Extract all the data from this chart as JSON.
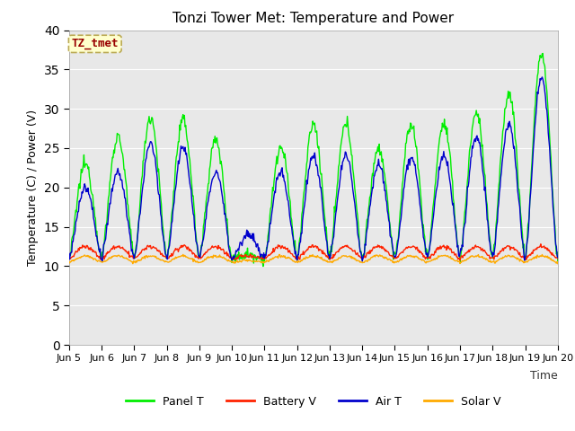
{
  "title": "Tonzi Tower Met: Temperature and Power",
  "xlabel": "Time",
  "ylabel": "Temperature (C) / Power (V)",
  "watermark": "TZ_tmet",
  "ylim": [
    0,
    40
  ],
  "yticks": [
    0,
    5,
    10,
    15,
    20,
    25,
    30,
    35,
    40
  ],
  "xtick_labels": [
    "Jun 5",
    "Jun 6",
    "Jun 7",
    "Jun 8",
    "Jun 9",
    "Jun 10",
    "Jun 11",
    "Jun 12",
    "Jun 13",
    "Jun 14",
    "Jun 15",
    "Jun 16",
    "Jun 17",
    "Jun 18",
    "Jun 19",
    "Jun 20"
  ],
  "colors": {
    "panel_t": "#00EE00",
    "battery_v": "#FF2200",
    "air_t": "#0000CC",
    "solar_v": "#FFAA00"
  },
  "legend": [
    "Panel T",
    "Battery V",
    "Air T",
    "Solar V"
  ],
  "bg_color": "#E8E8E8",
  "grid_color": "#FFFFFF",
  "base_temp": 11.0,
  "battery_base": 11.0,
  "solar_base": 10.5,
  "panel_amps": [
    12.0,
    15.5,
    18.0,
    17.5,
    15.0,
    0.5,
    14.0,
    17.0,
    17.0,
    14.0,
    17.0,
    17.0,
    18.5,
    21.0,
    26.0,
    3.0
  ],
  "air_amps": [
    9.0,
    11.0,
    14.5,
    14.0,
    11.0,
    3.0,
    11.0,
    13.0,
    13.0,
    12.0,
    13.0,
    13.0,
    15.5,
    17.0,
    23.0,
    11.0
  ],
  "bat_amps": [
    1.5,
    1.5,
    1.5,
    1.5,
    1.5,
    0.3,
    1.5,
    1.5,
    1.5,
    1.5,
    1.5,
    1.5,
    1.5,
    1.5,
    1.5,
    1.0
  ],
  "sol_amps": [
    0.8,
    0.8,
    0.8,
    0.8,
    0.8,
    0.2,
    0.8,
    0.8,
    0.8,
    0.8,
    0.8,
    0.8,
    0.8,
    0.8,
    0.8,
    0.5
  ],
  "n_points": 721,
  "title_fontsize": 11,
  "tick_fontsize": 8,
  "ylabel_fontsize": 9,
  "xlabel_fontsize": 9,
  "legend_fontsize": 9
}
